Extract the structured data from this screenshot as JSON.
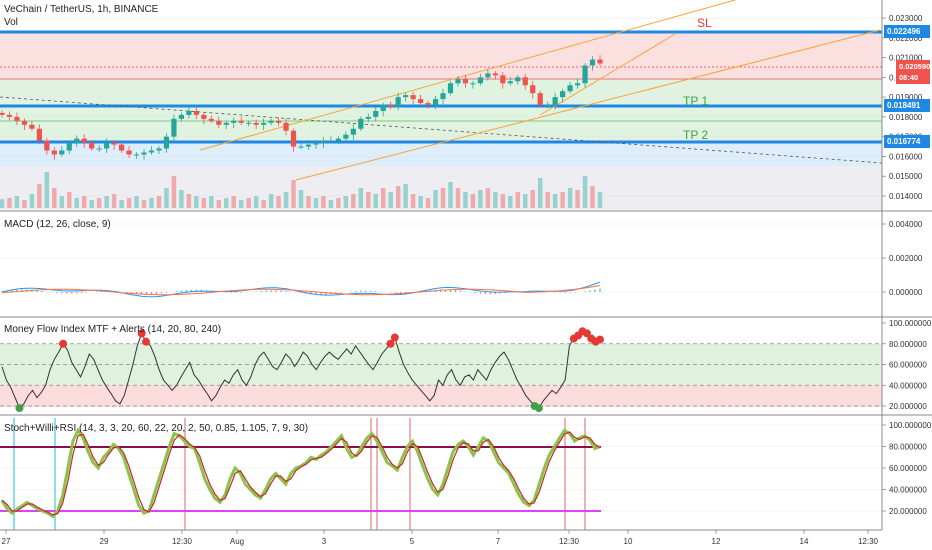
{
  "header": {
    "title": "VeChain / TetherUS, 1h, BINANCE",
    "volume_label": "Vol"
  },
  "colors": {
    "accent_blue": "#1e88e5",
    "orange": "#f7a33a",
    "sl_red": "#e53935",
    "tp_green": "#43a047",
    "macd_line": "#2196f3",
    "signal_line": "#ff7043",
    "mfi_line": "#333333",
    "stoch_line": "#8bc34a",
    "stoch_signal": "#c62828",
    "purple": "#880e4f",
    "magenta": "#e040fb",
    "cyan": "#26c6da"
  },
  "chart_data": [
    {
      "type": "candlestick",
      "title": "VeChain / TetherUS, 1h, BINANCE",
      "y_ticks": [
        "0.023000",
        "0.022000",
        "0.021000",
        "0.020000",
        "0.019000",
        "0.018000",
        "0.017000",
        "0.016000",
        "0.015000",
        "0.014000"
      ],
      "levels": [
        {
          "name": "SL",
          "value": "0.022496"
        },
        {
          "name": "TP 1",
          "value": "0.018491"
        },
        {
          "name": "TP 2",
          "value": "0.016774"
        }
      ],
      "zone_labels": {
        "sl": "SL",
        "tp1": "TP 1",
        "tp2": "TP 2"
      },
      "current_price": "0.020590",
      "countdown": "08:40",
      "close": [
        0.0181,
        0.018,
        0.0178,
        0.0176,
        0.0174,
        0.0168,
        0.0163,
        0.0161,
        0.0163,
        0.0167,
        0.0169,
        0.0167,
        0.0164,
        0.0164,
        0.0167,
        0.0166,
        0.0163,
        0.0161,
        0.0161,
        0.0162,
        0.0163,
        0.0164,
        0.017,
        0.0179,
        0.0181,
        0.0183,
        0.0181,
        0.0179,
        0.0178,
        0.0176,
        0.0177,
        0.0178,
        0.0177,
        0.0177,
        0.0176,
        0.0177,
        0.0178,
        0.0177,
        0.0173,
        0.0165,
        0.0165,
        0.0166,
        0.0167,
        0.0168,
        0.0168,
        0.0169,
        0.0171,
        0.0174,
        0.0179,
        0.018,
        0.0183,
        0.0186,
        0.0185,
        0.019,
        0.0191,
        0.0189,
        0.0187,
        0.0186,
        0.0189,
        0.0192,
        0.0197,
        0.0199,
        0.0197,
        0.0197,
        0.02,
        0.0202,
        0.0201,
        0.0197,
        0.0198,
        0.02,
        0.0196,
        0.0192,
        0.0186,
        0.0186,
        0.019,
        0.0193,
        0.0196,
        0.0197,
        0.0206,
        0.0209,
        0.0207
      ],
      "volume": [
        0.22,
        0.25,
        0.3,
        0.2,
        0.35,
        0.6,
        0.9,
        0.5,
        0.3,
        0.4,
        0.25,
        0.3,
        0.2,
        0.25,
        0.3,
        0.35,
        0.2,
        0.25,
        0.3,
        0.2,
        0.25,
        0.3,
        0.5,
        0.8,
        0.45,
        0.35,
        0.3,
        0.25,
        0.3,
        0.2,
        0.25,
        0.3,
        0.2,
        0.25,
        0.3,
        0.2,
        0.35,
        0.3,
        0.4,
        0.7,
        0.45,
        0.3,
        0.25,
        0.3,
        0.2,
        0.25,
        0.3,
        0.35,
        0.5,
        0.4,
        0.35,
        0.5,
        0.4,
        0.55,
        0.6,
        0.35,
        0.3,
        0.25,
        0.45,
        0.5,
        0.65,
        0.5,
        0.4,
        0.35,
        0.45,
        0.5,
        0.4,
        0.35,
        0.3,
        0.4,
        0.35,
        0.45,
        0.75,
        0.4,
        0.35,
        0.4,
        0.5,
        0.45,
        0.8,
        0.55,
        0.4
      ]
    },
    {
      "type": "line",
      "title": "MACD (12, 26, close, 9)",
      "y_ticks": [
        "0.004000",
        "0.002000",
        "0.000000"
      ]
    },
    {
      "type": "line",
      "title": "Money Flow Index MTF + Alerts (14, 20, 80, 240)",
      "y_ticks": [
        "100.000000",
        "80.000000",
        "60.000000",
        "40.000000",
        "20.000000"
      ],
      "levels": [
        80,
        60,
        40,
        20
      ],
      "values": [
        58,
        45,
        38,
        28,
        18,
        22,
        30,
        35,
        28,
        33,
        40,
        55,
        65,
        72,
        80,
        74,
        62,
        55,
        48,
        58,
        70,
        65,
        55,
        45,
        38,
        32,
        25,
        22,
        30,
        45,
        60,
        78,
        90,
        82,
        78,
        68,
        55,
        45,
        40,
        35,
        40,
        48,
        55,
        62,
        50,
        45,
        38,
        32,
        25,
        30,
        38,
        45,
        42,
        50,
        55,
        45,
        40,
        48,
        60,
        68,
        72,
        65,
        58,
        55,
        62,
        70,
        66,
        58,
        64,
        72,
        68,
        60,
        55,
        62,
        68,
        72,
        68,
        65,
        70,
        75,
        70,
        78,
        72,
        66,
        60,
        55,
        62,
        70,
        75,
        80,
        86,
        72,
        60,
        52,
        45,
        40,
        35,
        30,
        25,
        30,
        45,
        40,
        50,
        55,
        45,
        40,
        48,
        50,
        45,
        55,
        50,
        45,
        55,
        62,
        68,
        72,
        65,
        55,
        45,
        38,
        30,
        25,
        20,
        18,
        25,
        30,
        35,
        32,
        38,
        45,
        78,
        85,
        88,
        92,
        90,
        85,
        82,
        84
      ]
    },
    {
      "type": "line",
      "title": "Stoch+Willi+RSI (14, 3, 3, 20, 60, 22, 20, 2, 50, 0.85, 1.105, 7, 9, 30)",
      "x_ticks": [
        "27",
        "29",
        "12:30",
        "Aug",
        "3",
        "5",
        "7",
        "12:30",
        "10",
        "12",
        "14",
        "12:30"
      ],
      "y_ticks": [
        "100.000000",
        "80.000000",
        "60.000000",
        "40.000000",
        "20.000000"
      ],
      "levels": [
        80,
        20
      ],
      "values": [
        30,
        22,
        18,
        22,
        25,
        28,
        25,
        22,
        20,
        18,
        15,
        20,
        35,
        60,
        85,
        95,
        88,
        75,
        65,
        60,
        70,
        75,
        82,
        78,
        70,
        55,
        40,
        25,
        18,
        20,
        35,
        50,
        65,
        80,
        92,
        90,
        85,
        80,
        78,
        65,
        50,
        40,
        32,
        28,
        35,
        50,
        60,
        55,
        45,
        40,
        35,
        32,
        40,
        50,
        55,
        50,
        45,
        55,
        60,
        62,
        65,
        70,
        68,
        72,
        75,
        80,
        85,
        90,
        78,
        70,
        72,
        80,
        88,
        92,
        85,
        75,
        65,
        62,
        58,
        70,
        80,
        85,
        75,
        62,
        50,
        40,
        35,
        45,
        60,
        75,
        82,
        85,
        80,
        72,
        80,
        88,
        85,
        75,
        65,
        60,
        55,
        45,
        35,
        28,
        25,
        30,
        45,
        60,
        72,
        80,
        88,
        95,
        92,
        85,
        88,
        90,
        86,
        78,
        80
      ]
    }
  ]
}
